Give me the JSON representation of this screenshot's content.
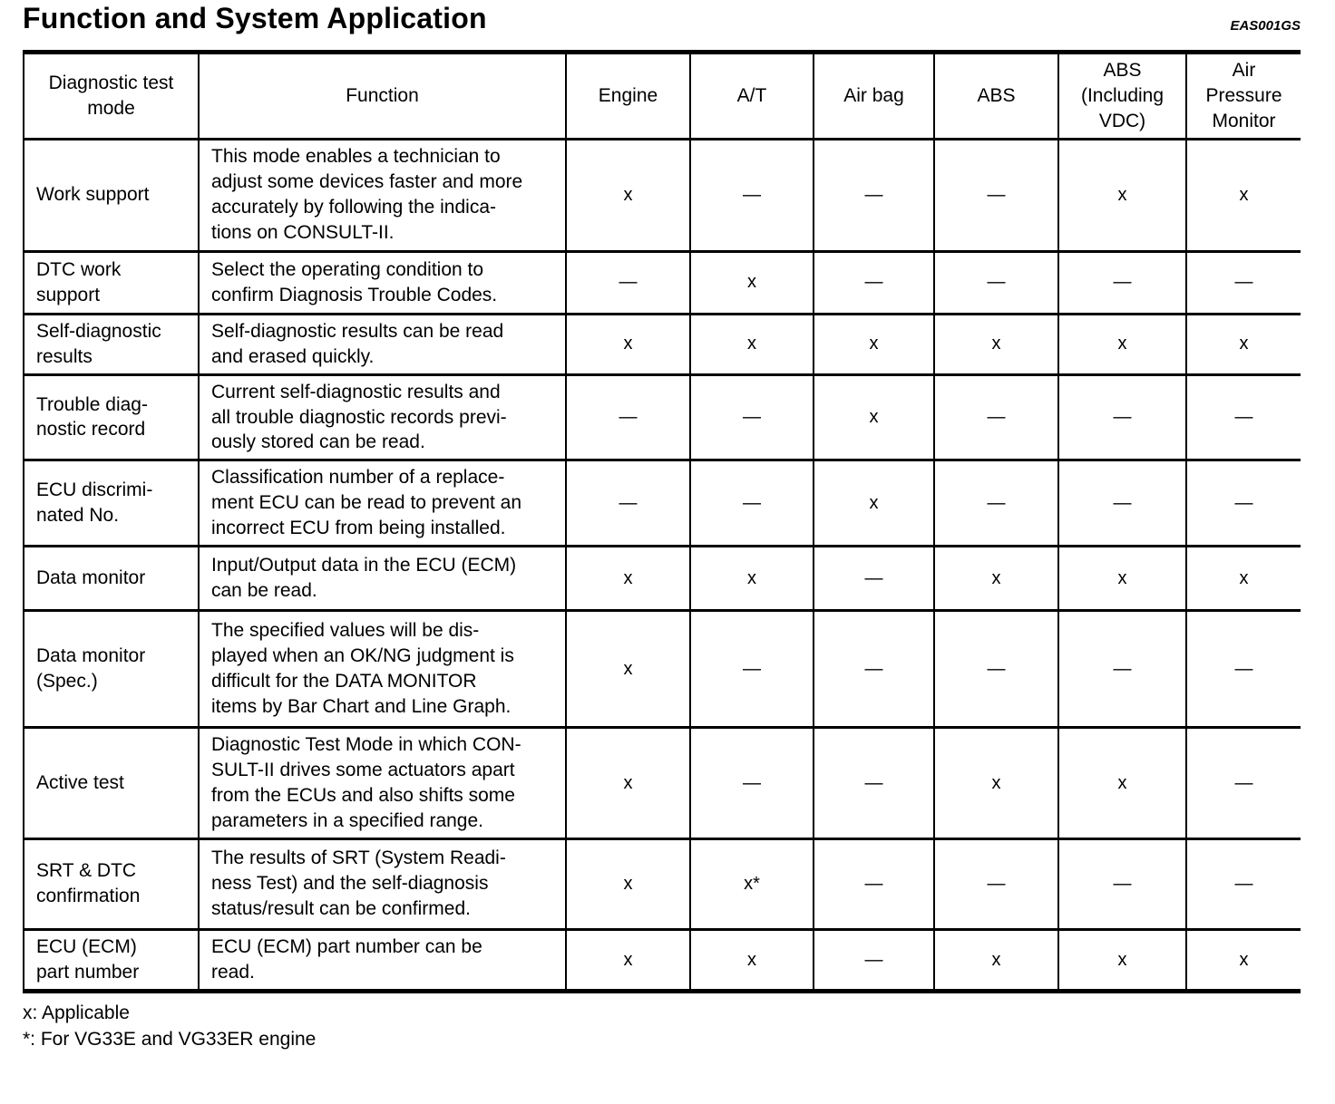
{
  "page": {
    "title": "Function and System Application",
    "code_ref": "EAS001GS"
  },
  "table": {
    "headers": [
      "Diagnostic test\nmode",
      "Function",
      "Engine",
      "A/T",
      "Air bag",
      "ABS",
      "ABS\n(Including\nVDC)",
      "Air\nPressure\nMonitor"
    ],
    "rows": [
      {
        "mode": "Work support",
        "function": "This mode enables a technician to\nadjust some devices faster and more\naccurately by following the indica-\ntions on CONSULT-II.",
        "marks": [
          "x",
          "—",
          "—",
          "—",
          "x",
          "x"
        ]
      },
      {
        "mode": "DTC work\nsupport",
        "function": "Select the operating condition to\nconfirm Diagnosis Trouble Codes.",
        "marks": [
          "—",
          "x",
          "—",
          "—",
          "—",
          "—"
        ]
      },
      {
        "mode": "Self-diagnostic\nresults",
        "function": "Self-diagnostic results can be read\nand erased quickly.",
        "marks": [
          "x",
          "x",
          "x",
          "x",
          "x",
          "x"
        ]
      },
      {
        "mode": "Trouble diag-\nnostic record",
        "function": "Current self-diagnostic results and\nall trouble diagnostic records previ-\nously stored can be read.",
        "marks": [
          "—",
          "—",
          "x",
          "—",
          "—",
          "—"
        ]
      },
      {
        "mode": "ECU discrimi-\nnated No.",
        "function": "Classification number of a replace-\nment ECU can be read to prevent an\nincorrect ECU from being installed.",
        "marks": [
          "—",
          "—",
          "x",
          "—",
          "—",
          "—"
        ]
      },
      {
        "mode": "Data monitor",
        "function": "Input/Output data in the ECU (ECM)\ncan be read.",
        "marks": [
          "x",
          "x",
          "—",
          "x",
          "x",
          "x"
        ]
      },
      {
        "mode": "Data monitor\n(Spec.)",
        "function": "The specified values will be dis-\nplayed when an OK/NG judgment is\ndifficult for the DATA MONITOR\nitems by Bar Chart and Line Graph.",
        "marks": [
          "x",
          "—",
          "—",
          "—",
          "—",
          "—"
        ]
      },
      {
        "mode": "Active test",
        "function": "Diagnostic Test Mode in which CON-\nSULT-II drives some actuators apart\nfrom the ECUs and also shifts some\nparameters in a specified range.",
        "marks": [
          "x",
          "—",
          "—",
          "x",
          "x",
          "—"
        ]
      },
      {
        "mode": "SRT & DTC\nconfirmation",
        "function": "The results of SRT (System Readi-\nness Test) and the self-diagnosis\nstatus/result can be confirmed.",
        "marks": [
          "x",
          "x*",
          "—",
          "—",
          "—",
          "—"
        ]
      },
      {
        "mode": "ECU (ECM)\npart number",
        "function": "ECU (ECM) part number can be\nread.",
        "marks": [
          "x",
          "x",
          "—",
          "x",
          "x",
          "x"
        ]
      }
    ]
  },
  "footnotes": {
    "applicable": "x: Applicable",
    "asterisk": "*: For VG33E and VG33ER engine"
  }
}
